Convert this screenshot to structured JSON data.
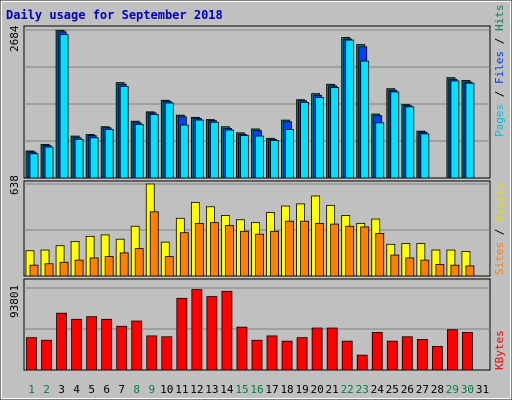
{
  "title": "Daily usage for September 2018",
  "colors": {
    "background": "#c0c0c0",
    "plot": "#c0c0c0",
    "hits": "#00805c",
    "files": "#0040ff",
    "pages": "#00e0ff",
    "visits": "#ffff00",
    "sites": "#ff8000",
    "kbytes": "#ff0000",
    "title": "#0000c0",
    "weekend_label": "#008040",
    "weekday_label": "#000000"
  },
  "legend": {
    "top": {
      "pages": "Pages",
      "files": "Files",
      "hits": "Hits",
      "sep": " / "
    },
    "middle": {
      "sites": "Sites",
      "visits": "Visits",
      "sep": " / "
    },
    "bottom": {
      "kbytes": "KBytes"
    }
  },
  "chart_data": [
    {
      "type": "bar",
      "name": "hits_files_pages",
      "ymax_label": "2684",
      "ylim": [
        0,
        2684
      ],
      "categories": [
        "1",
        "2",
        "3",
        "4",
        "5",
        "6",
        "7",
        "8",
        "9",
        "10",
        "11",
        "12",
        "13",
        "14",
        "15",
        "16",
        "17",
        "18",
        "19",
        "20",
        "21",
        "22",
        "23",
        "24",
        "25",
        "26",
        "27",
        "28",
        "29",
        "30",
        "31"
      ],
      "series": [
        {
          "name": "Hits",
          "values": [
            490,
            610,
            2680,
            760,
            790,
            930,
            1730,
            1030,
            1200,
            1410,
            1140,
            1100,
            1060,
            930,
            820,
            890,
            720,
            1050,
            1420,
            1530,
            1700,
            2550,
            2420,
            1160,
            1620,
            1330,
            850,
            0,
            1820,
            1770,
            0
          ]
        },
        {
          "name": "Files",
          "values": [
            470,
            590,
            2650,
            730,
            770,
            910,
            1700,
            1000,
            1180,
            1390,
            1110,
            1080,
            1040,
            900,
            790,
            860,
            700,
            1020,
            1400,
            1500,
            1670,
            2520,
            2380,
            1130,
            1590,
            1310,
            830,
            0,
            1790,
            1740,
            0
          ]
        },
        {
          "name": "Pages",
          "values": [
            440,
            560,
            2600,
            700,
            730,
            880,
            1660,
            970,
            1150,
            1360,
            960,
            1050,
            1010,
            870,
            770,
            760,
            680,
            880,
            1370,
            1460,
            1640,
            2500,
            2120,
            1000,
            1560,
            1290,
            800,
            0,
            1760,
            1720,
            0
          ]
        }
      ]
    },
    {
      "type": "bar",
      "name": "visits_sites",
      "ymax_label": "638",
      "ylim": [
        0,
        638
      ],
      "categories": [
        "1",
        "2",
        "3",
        "4",
        "5",
        "6",
        "7",
        "8",
        "9",
        "10",
        "11",
        "12",
        "13",
        "14",
        "15",
        "16",
        "17",
        "18",
        "19",
        "20",
        "21",
        "22",
        "23",
        "24",
        "25",
        "26",
        "27",
        "28",
        "29",
        "30",
        "31"
      ],
      "series": [
        {
          "name": "Visits",
          "values": [
            175,
            180,
            210,
            240,
            275,
            285,
            255,
            345,
            638,
            235,
            400,
            510,
            480,
            420,
            390,
            370,
            440,
            485,
            500,
            555,
            490,
            420,
            365,
            395,
            220,
            225,
            225,
            180,
            180,
            170,
            0
          ]
        },
        {
          "name": "Sites",
          "values": [
            75,
            85,
            95,
            110,
            125,
            135,
            160,
            190,
            445,
            135,
            300,
            365,
            370,
            350,
            310,
            290,
            310,
            380,
            380,
            365,
            360,
            345,
            340,
            295,
            145,
            125,
            110,
            80,
            75,
            70,
            0
          ]
        }
      ]
    },
    {
      "type": "bar",
      "name": "kbytes",
      "ymax_label": "93801",
      "ylim": [
        0,
        93801
      ],
      "categories": [
        "1",
        "2",
        "3",
        "4",
        "5",
        "6",
        "7",
        "8",
        "9",
        "10",
        "11",
        "12",
        "13",
        "14",
        "15",
        "16",
        "17",
        "18",
        "19",
        "20",
        "21",
        "22",
        "23",
        "24",
        "25",
        "26",
        "27",
        "28",
        "29",
        "30",
        "31"
      ],
      "series": [
        {
          "name": "KBytes",
          "values": [
            37000,
            34000,
            65000,
            58000,
            61000,
            58000,
            50000,
            56000,
            39000,
            38000,
            82000,
            92000,
            84000,
            90000,
            49000,
            34000,
            39000,
            33000,
            37000,
            48000,
            48000,
            33000,
            17000,
            43000,
            33000,
            38000,
            35000,
            27000,
            46000,
            43000,
            0
          ]
        }
      ]
    }
  ],
  "days": [
    "1",
    "2",
    "3",
    "4",
    "5",
    "6",
    "7",
    "8",
    "9",
    "10",
    "11",
    "12",
    "13",
    "14",
    "15",
    "16",
    "17",
    "18",
    "19",
    "20",
    "21",
    "22",
    "23",
    "24",
    "25",
    "26",
    "27",
    "28",
    "29",
    "30",
    "31"
  ],
  "weekend_days": [
    1,
    2,
    8,
    9,
    15,
    16,
    22,
    23,
    29,
    30
  ]
}
